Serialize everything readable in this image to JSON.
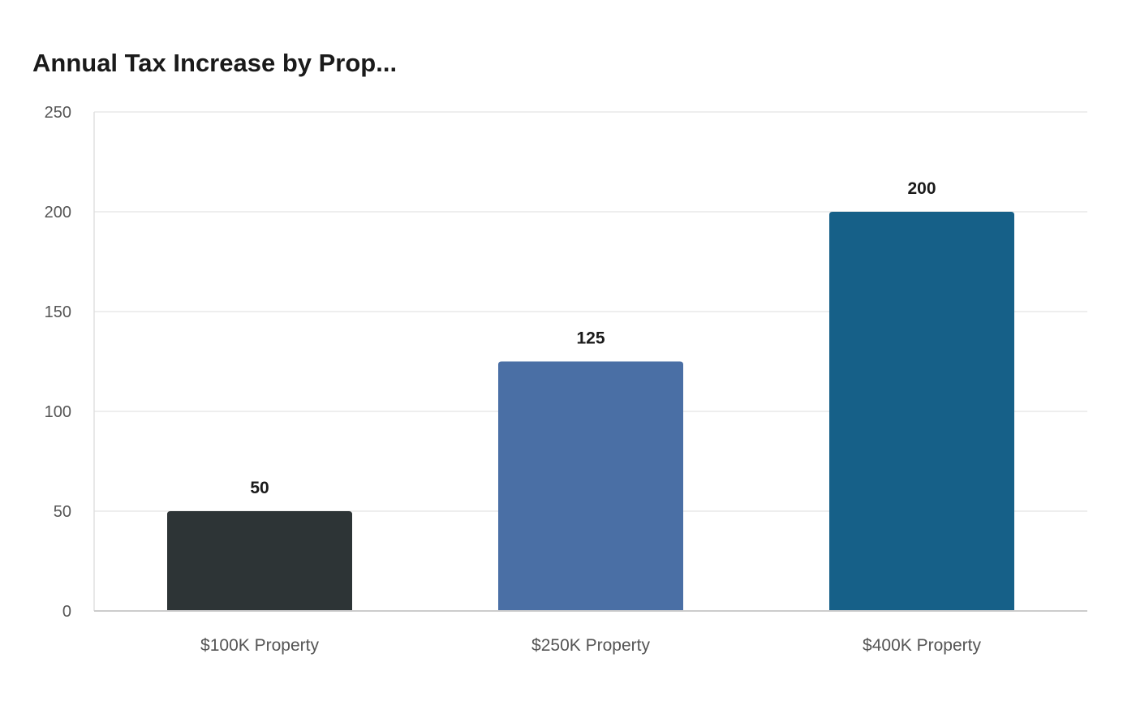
{
  "chart_data": {
    "type": "bar",
    "title": "Annual Tax Increase by Prop...",
    "xlabel": "",
    "ylabel": "",
    "categories": [
      "$100K Property",
      "$250K Property",
      "$400K Property"
    ],
    "values": [
      50,
      125,
      200
    ],
    "colors": [
      "#2d3436",
      "#4a6fa5",
      "#166088"
    ],
    "ylim": [
      0,
      250
    ],
    "yticks": [
      0,
      50,
      100,
      150,
      200,
      250
    ],
    "grid": true,
    "data_labels": true
  }
}
